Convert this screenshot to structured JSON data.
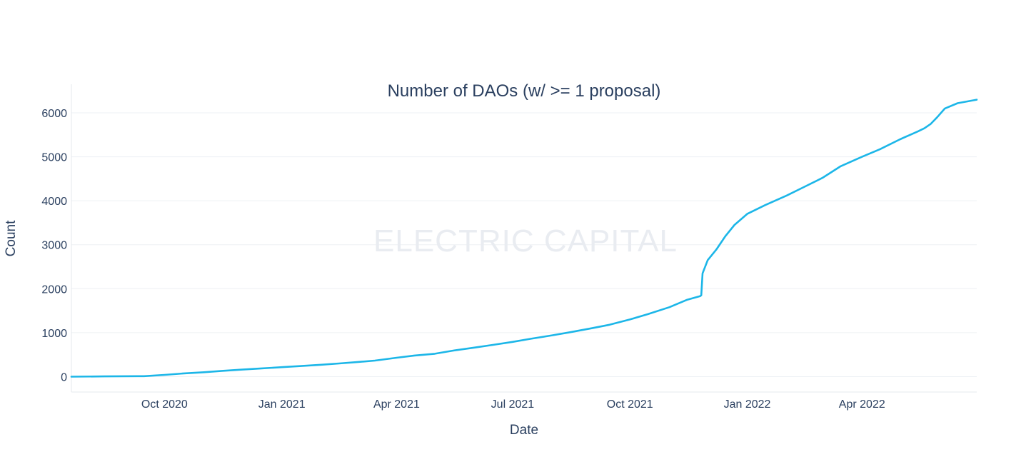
{
  "chart_data": {
    "type": "line",
    "title": "Number of DAOs (w/ >= 1 proposal)",
    "xlabel": "Date",
    "ylabel": "Count",
    "watermark": "ELECTRIC CAPITAL",
    "x_ticks": [
      {
        "date": "2020-10-01",
        "label": "Oct 2020"
      },
      {
        "date": "2021-01-01",
        "label": "Jan 2021"
      },
      {
        "date": "2021-04-01",
        "label": "Apr 2021"
      },
      {
        "date": "2021-07-01",
        "label": "Jul 2021"
      },
      {
        "date": "2021-10-01",
        "label": "Oct 2021"
      },
      {
        "date": "2022-01-01",
        "label": "Jan 2022"
      },
      {
        "date": "2022-04-01",
        "label": "Apr 2022"
      }
    ],
    "y_ticks": [
      {
        "value": 0,
        "label": "0"
      },
      {
        "value": 1000,
        "label": "1000"
      },
      {
        "value": 2000,
        "label": "2000"
      },
      {
        "value": 3000,
        "label": "3000"
      },
      {
        "value": 4000,
        "label": "4000"
      },
      {
        "value": 5000,
        "label": "5000"
      },
      {
        "value": 6000,
        "label": "6000"
      }
    ],
    "xlim": [
      "2020-07-20",
      "2022-06-30"
    ],
    "ylim": [
      -350,
      6650
    ],
    "grid": true,
    "line_color": "#1cb6e8",
    "series": [
      {
        "points": [
          [
            "2020-07-20",
            0
          ],
          [
            "2020-08-15",
            5
          ],
          [
            "2020-09-10",
            10
          ],
          [
            "2020-09-15",
            10
          ],
          [
            "2020-10-01",
            40
          ],
          [
            "2020-10-15",
            70
          ],
          [
            "2020-11-01",
            100
          ],
          [
            "2020-11-15",
            130
          ],
          [
            "2020-12-01",
            160
          ],
          [
            "2020-12-15",
            185
          ],
          [
            "2021-01-01",
            215
          ],
          [
            "2021-01-15",
            240
          ],
          [
            "2021-02-01",
            270
          ],
          [
            "2021-02-15",
            300
          ],
          [
            "2021-03-01",
            330
          ],
          [
            "2021-03-15",
            365
          ],
          [
            "2021-04-01",
            430
          ],
          [
            "2021-04-15",
            480
          ],
          [
            "2021-05-01",
            520
          ],
          [
            "2021-05-15",
            590
          ],
          [
            "2021-06-01",
            660
          ],
          [
            "2021-06-15",
            720
          ],
          [
            "2021-07-01",
            790
          ],
          [
            "2021-07-15",
            860
          ],
          [
            "2021-08-01",
            940
          ],
          [
            "2021-08-15",
            1010
          ],
          [
            "2021-09-01",
            1100
          ],
          [
            "2021-09-15",
            1180
          ],
          [
            "2021-10-01",
            1300
          ],
          [
            "2021-10-15",
            1420
          ],
          [
            "2021-11-01",
            1580
          ],
          [
            "2021-11-15",
            1750
          ],
          [
            "2021-11-25",
            1830
          ],
          [
            "2021-11-26",
            1850
          ],
          [
            "2021-11-27",
            2350
          ],
          [
            "2021-12-01",
            2650
          ],
          [
            "2021-12-08",
            2900
          ],
          [
            "2021-12-15",
            3200
          ],
          [
            "2021-12-22",
            3450
          ],
          [
            "2022-01-01",
            3700
          ],
          [
            "2022-01-15",
            3900
          ],
          [
            "2022-02-01",
            4120
          ],
          [
            "2022-02-15",
            4320
          ],
          [
            "2022-03-01",
            4520
          ],
          [
            "2022-03-15",
            4780
          ],
          [
            "2022-04-01",
            5000
          ],
          [
            "2022-04-15",
            5170
          ],
          [
            "2022-05-01",
            5400
          ],
          [
            "2022-05-15",
            5580
          ],
          [
            "2022-05-20",
            5650
          ],
          [
            "2022-05-25",
            5750
          ],
          [
            "2022-05-30",
            5900
          ],
          [
            "2022-06-05",
            6100
          ],
          [
            "2022-06-15",
            6220
          ],
          [
            "2022-06-30",
            6300
          ]
        ]
      }
    ]
  }
}
